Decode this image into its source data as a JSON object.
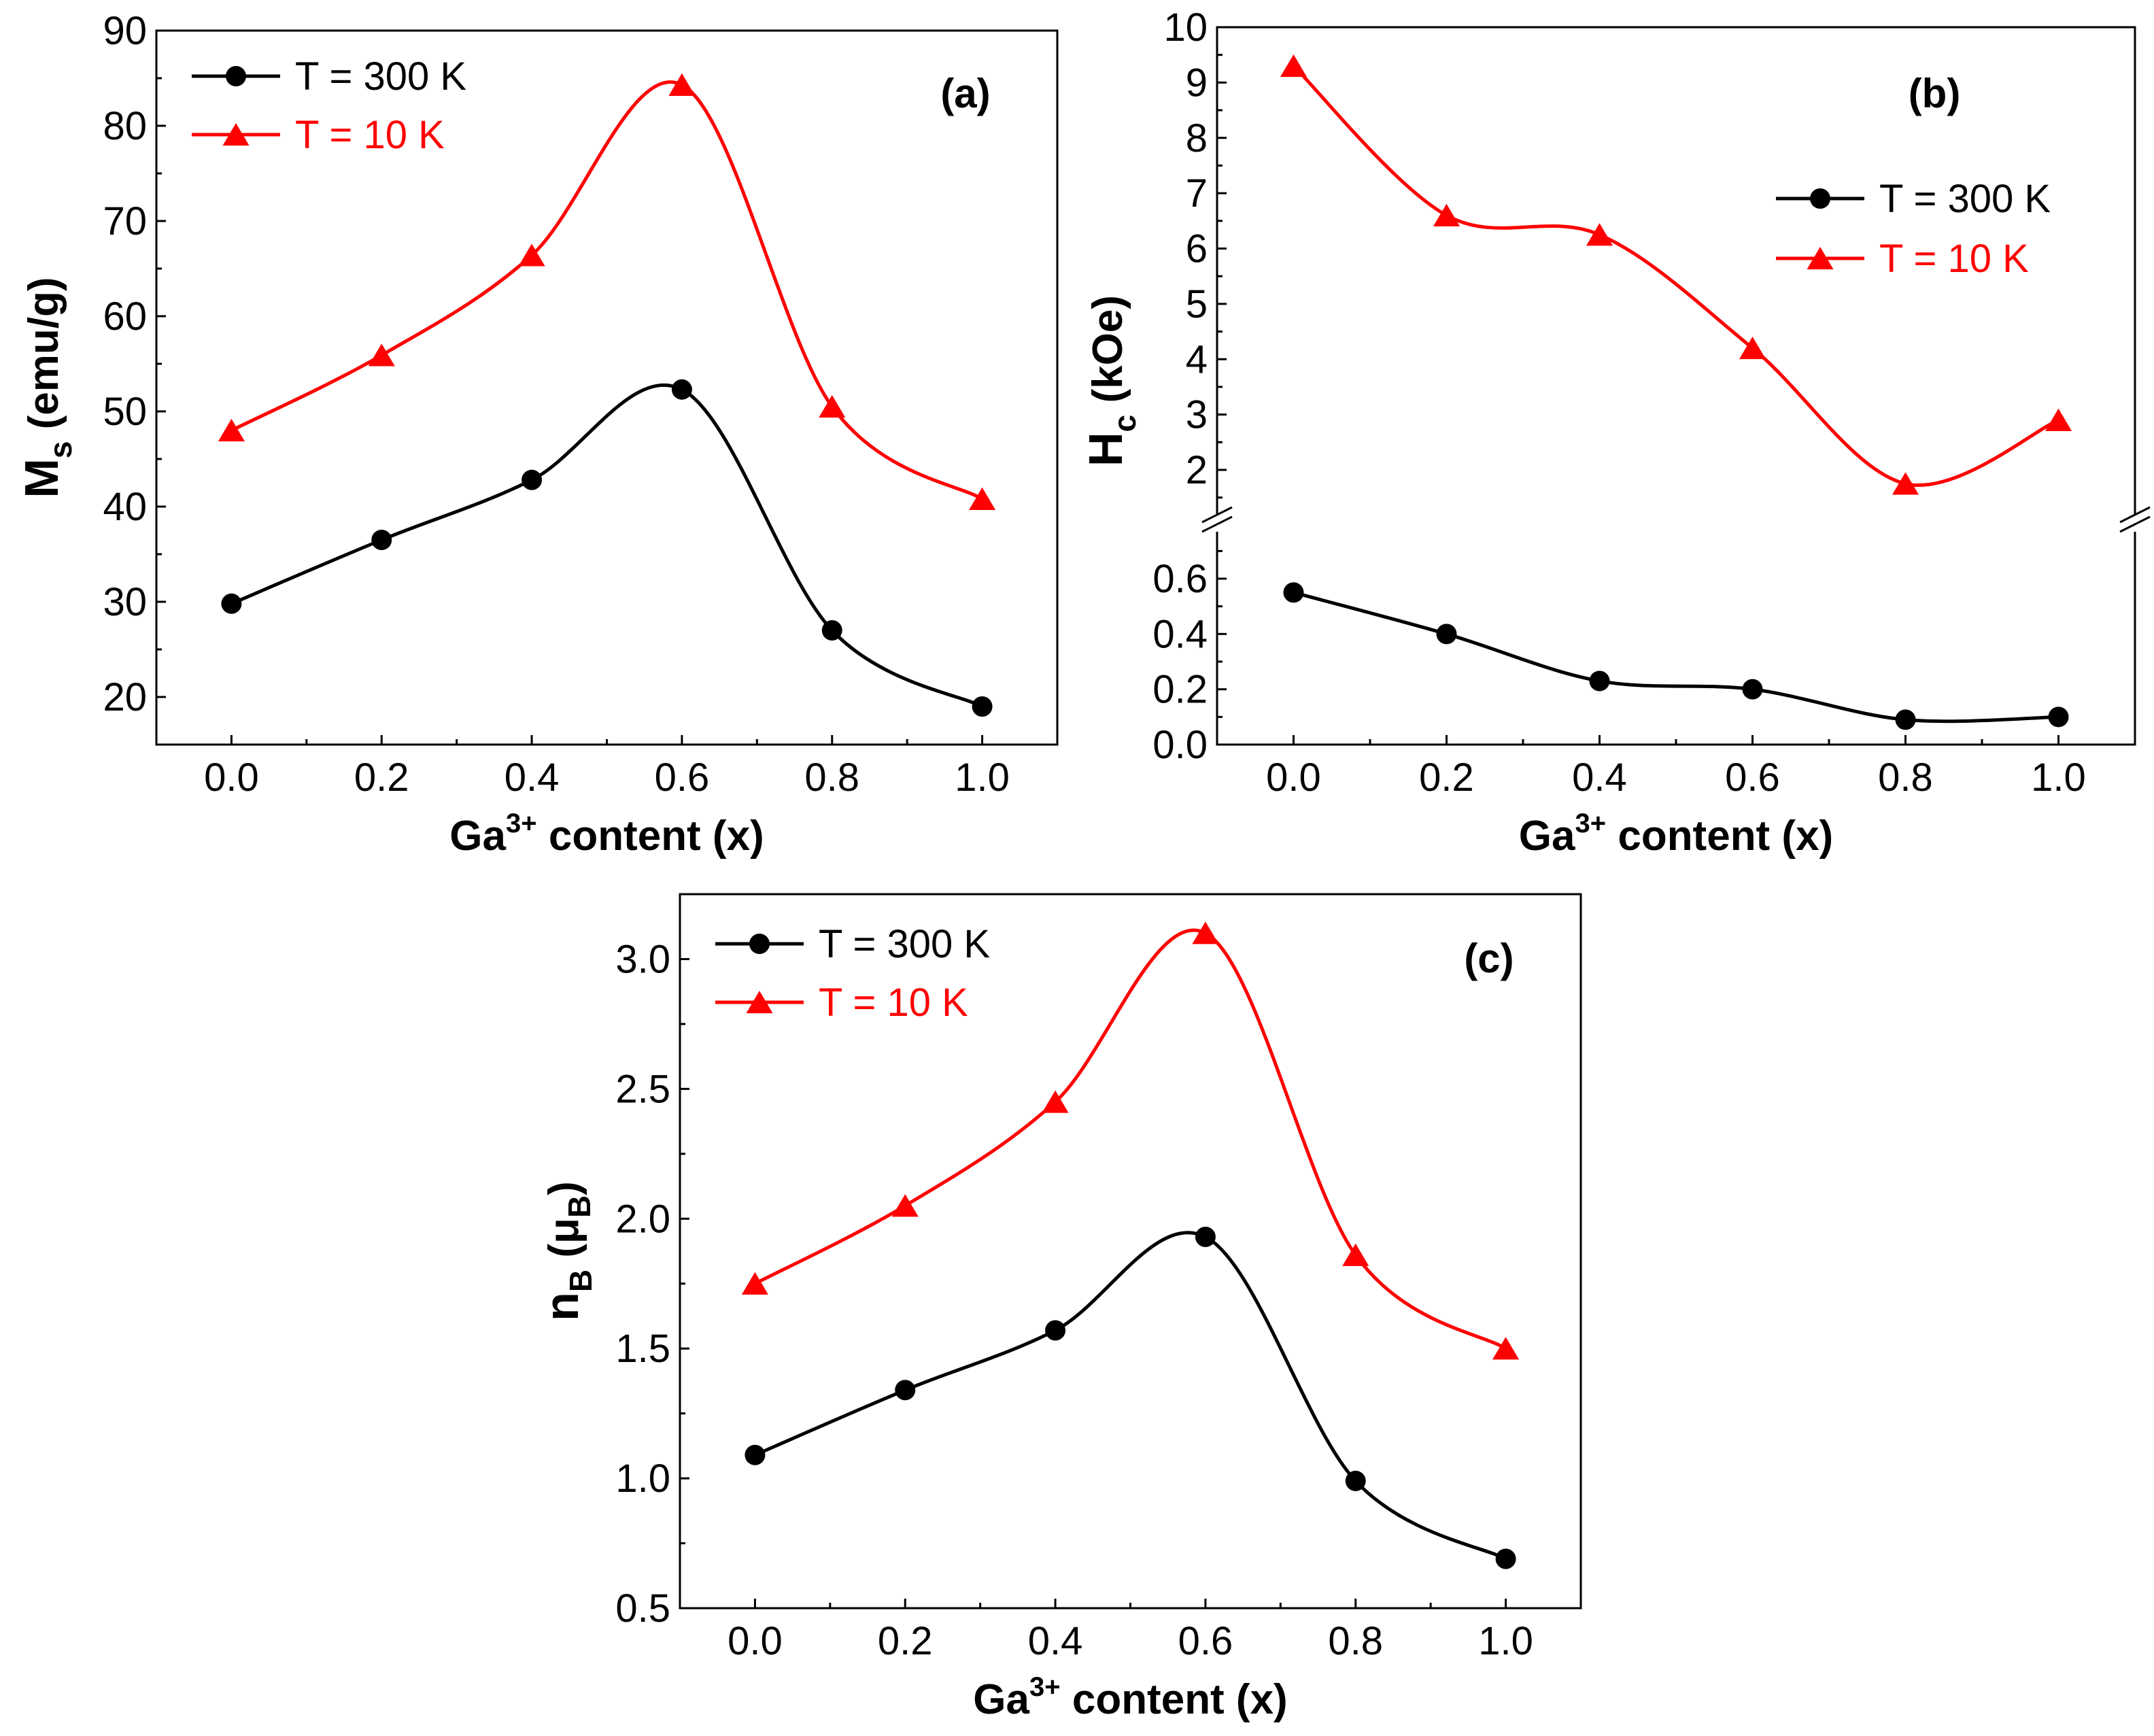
{
  "chart_data": [
    {
      "type": "line",
      "panel_label": "(a)",
      "xlabel": {
        "base": "Ga",
        "sup": "3+",
        "rest": " content (x)"
      },
      "ylabel": {
        "main": "M",
        "sub": "s",
        "unit": "(emu/g)"
      },
      "x": [
        0.0,
        0.2,
        0.4,
        0.6,
        0.8,
        1.0
      ],
      "xlim": [
        -0.1,
        1.1
      ],
      "xticks": [
        "0.0",
        "0.2",
        "0.4",
        "0.6",
        "0.8",
        "1.0"
      ],
      "ylim": [
        15,
        90
      ],
      "yticks": [
        "20",
        "30",
        "40",
        "50",
        "60",
        "70",
        "80",
        "90"
      ],
      "legend": "top-left",
      "series": [
        {
          "name": "T = 300 K",
          "color": "#000000",
          "marker": "circle",
          "values": [
            29.8,
            36.5,
            42.8,
            52.3,
            27.0,
            19.0
          ]
        },
        {
          "name": "T = 10 K",
          "color": "#ff0000",
          "marker": "triangle",
          "values": [
            48.0,
            55.9,
            66.4,
            84.3,
            50.5,
            40.8
          ]
        }
      ]
    },
    {
      "type": "line",
      "panel_label": "(b)",
      "broken_axis": true,
      "xlabel": {
        "base": "Ga",
        "sup": "3+",
        "rest": " content (x)"
      },
      "ylabel": {
        "main": "H",
        "sub": "c",
        "unit": "(kOe)"
      },
      "x": [
        0.0,
        0.2,
        0.4,
        0.6,
        0.8,
        1.0
      ],
      "xlim": [
        -0.1,
        1.1
      ],
      "xticks": [
        "0.0",
        "0.2",
        "0.4",
        "0.6",
        "0.8",
        "1.0"
      ],
      "ylim_lower": [
        0.0,
        0.75
      ],
      "yticks_lower": [
        "0.0",
        "0.2",
        "0.4",
        "0.6"
      ],
      "ylim_upper": [
        1.3,
        10.0
      ],
      "yticks_upper": [
        "2",
        "3",
        "4",
        "5",
        "6",
        "7",
        "8",
        "9",
        "10"
      ],
      "legend": "right",
      "series": [
        {
          "name": "T = 300 K",
          "color": "#000000",
          "marker": "circle",
          "values": [
            0.55,
            0.4,
            0.23,
            0.2,
            0.09,
            0.1
          ]
        },
        {
          "name": "T = 10 K",
          "color": "#ff0000",
          "marker": "triangle",
          "values": [
            9.3,
            6.6,
            6.25,
            4.2,
            1.75,
            2.9
          ]
        }
      ]
    },
    {
      "type": "line",
      "panel_label": "(c)",
      "xlabel": {
        "base": "Ga",
        "sup": "3+",
        "rest": " content (x)"
      },
      "ylabel": {
        "main": "n",
        "sub": "B",
        "unit_open": "(μ",
        "unit_sub": "B",
        "unit_close": ")"
      },
      "x": [
        0.0,
        0.2,
        0.4,
        0.6,
        0.8,
        1.0
      ],
      "xlim": [
        -0.1,
        1.1
      ],
      "xticks": [
        "0.0",
        "0.2",
        "0.4",
        "0.6",
        "0.8",
        "1.0"
      ],
      "ylim": [
        0.5,
        3.25
      ],
      "yticks": [
        "0.5",
        "1.0",
        "1.5",
        "2.0",
        "2.5",
        "3.0"
      ],
      "legend": "top-left",
      "series": [
        {
          "name": "T = 300 K",
          "color": "#000000",
          "marker": "circle",
          "values": [
            1.09,
            1.34,
            1.57,
            1.93,
            0.99,
            0.69
          ]
        },
        {
          "name": "T = 10 K",
          "color": "#ff0000",
          "marker": "triangle",
          "values": [
            1.75,
            2.05,
            2.45,
            3.1,
            1.86,
            1.5
          ]
        }
      ]
    }
  ]
}
